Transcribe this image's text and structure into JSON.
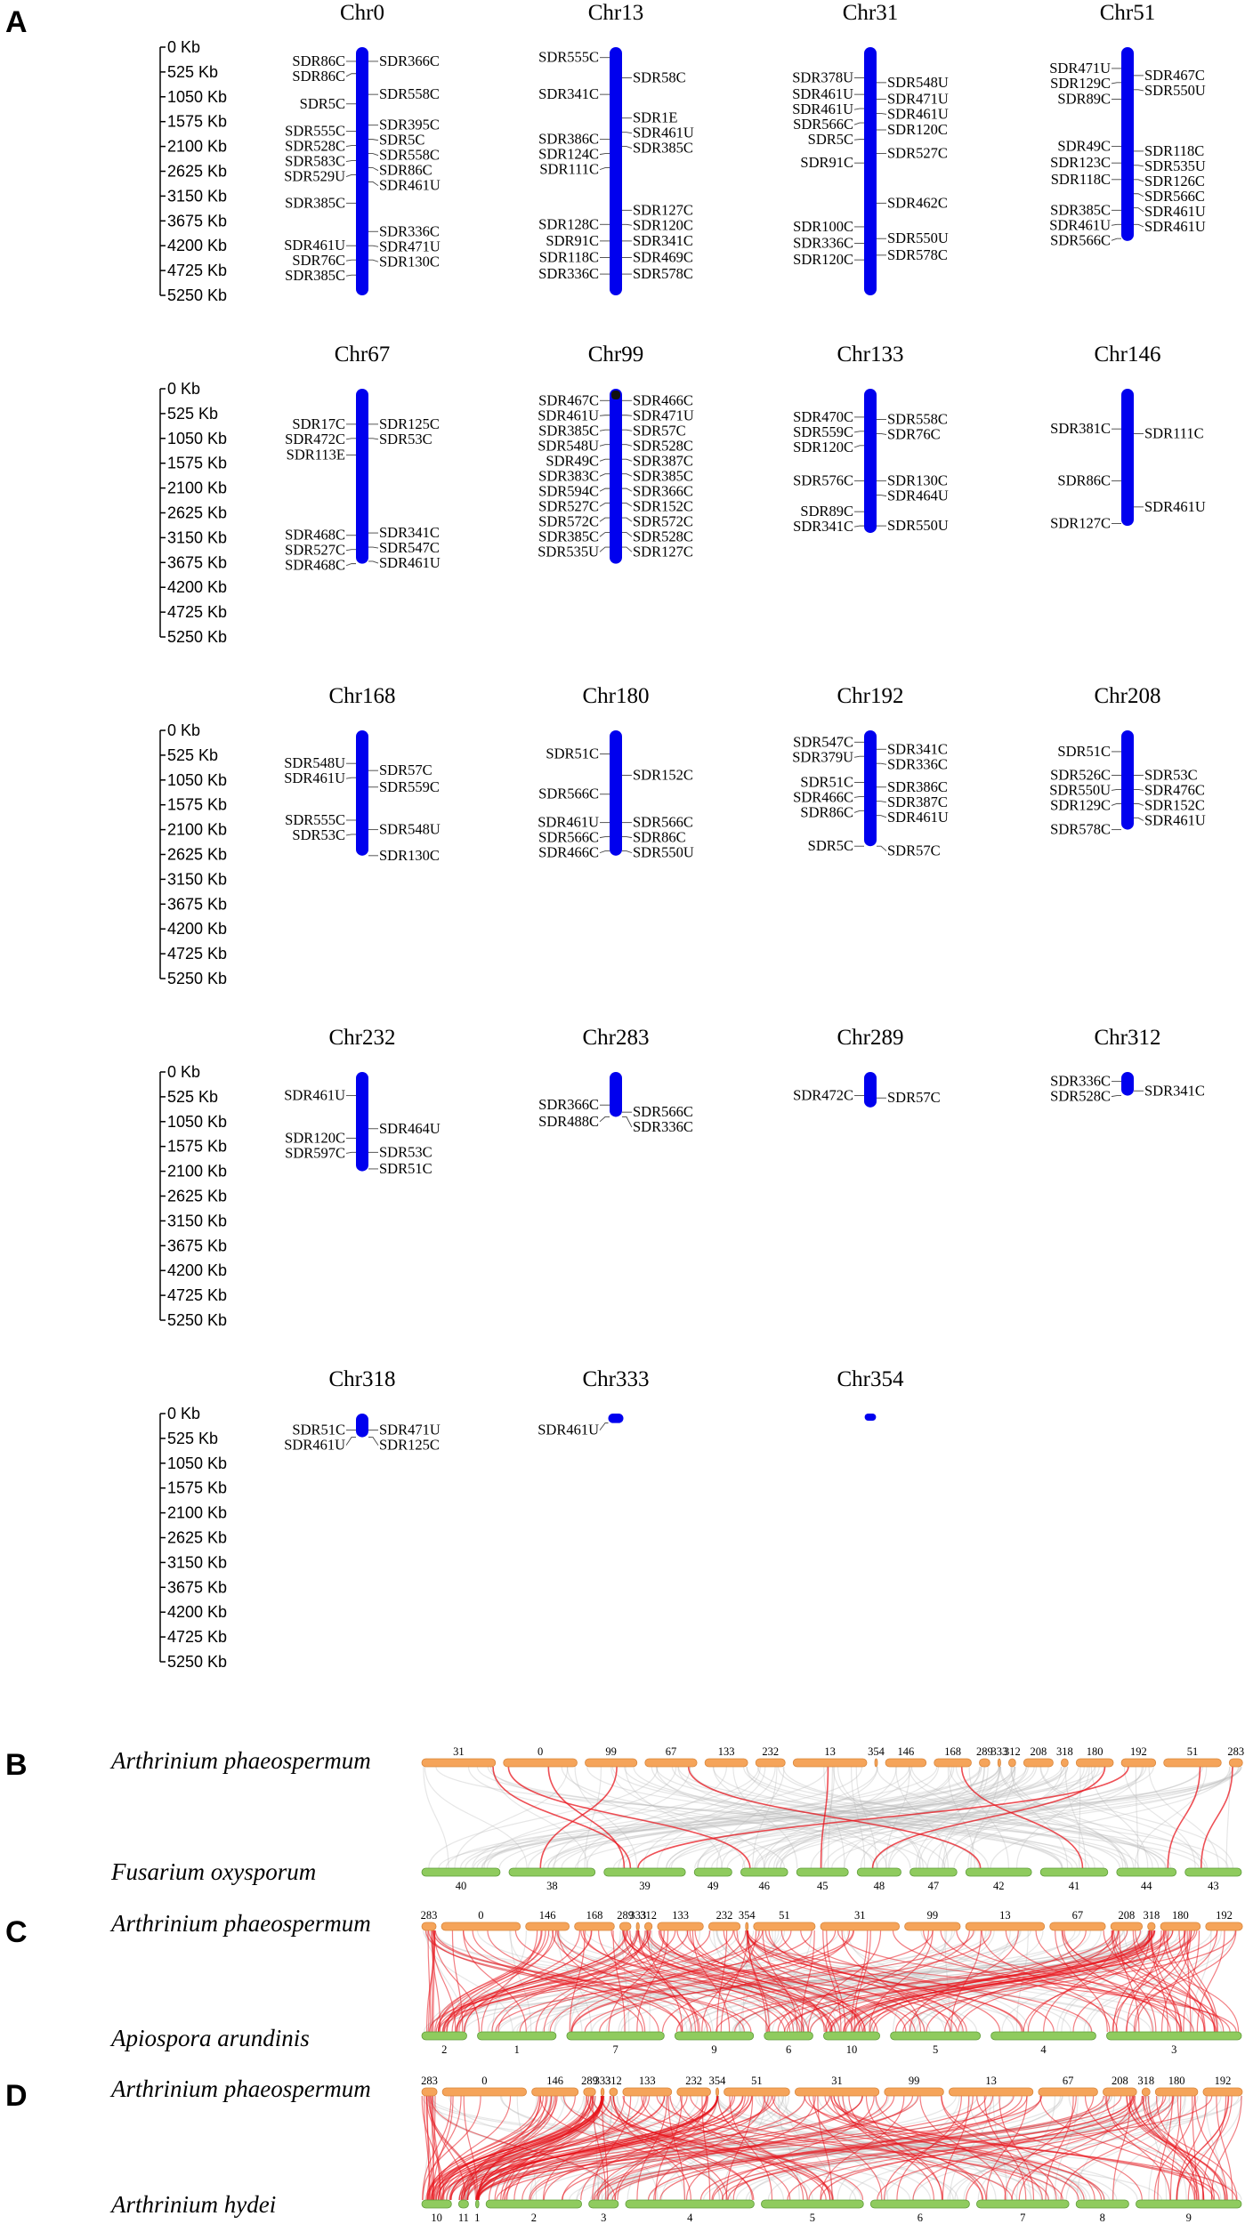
{
  "panel_a": {
    "label": "A",
    "scale_ticks": [
      "0 Kb",
      "525 Kb",
      "1050 Kb",
      "1575 Kb",
      "2100 Kb",
      "2625 Kb",
      "3150 Kb",
      "3675 Kb",
      "4200 Kb",
      "4725 Kb",
      "5250 Kb"
    ],
    "scale_max_kb": 5250,
    "chromosome_color": "#0000ee",
    "chromosomes": [
      {
        "name": "Chr0",
        "length_kb": 5250,
        "left": [
          [
            "SDR86C",
            300
          ],
          [
            "SDR86C",
            560
          ],
          [
            "SDR5C",
            1200
          ],
          [
            "SDR555C",
            1780
          ],
          [
            "SDR528C",
            2080
          ],
          [
            "SDR583C",
            2400
          ],
          [
            "SDR529U",
            2700
          ],
          [
            "SDR385C",
            3300
          ],
          [
            "SDR461U",
            4200
          ],
          [
            "SDR76C",
            4500
          ],
          [
            "SDR385C",
            4820
          ]
        ],
        "right": [
          [
            "SDR366C",
            300
          ],
          [
            "SDR558C",
            1000
          ],
          [
            "SDR395C",
            1650
          ],
          [
            "SDR5C",
            1950
          ],
          [
            "SDR558C",
            2250
          ],
          [
            "SDR86C",
            2550
          ],
          [
            "SDR461U",
            2850
          ],
          [
            "SDR336C",
            3900
          ],
          [
            "SDR471U",
            4200
          ],
          [
            "SDR130C",
            4500
          ]
        ]
      },
      {
        "name": "Chr13",
        "length_kb": 5250,
        "left": [
          [
            "SDR555C",
            220
          ],
          [
            "SDR341C",
            1000
          ],
          [
            "SDR386C",
            1950
          ],
          [
            "SDR124C",
            2250
          ],
          [
            "SDR111C",
            2550
          ],
          [
            "SDR128C",
            3750
          ],
          [
            "SDR91C",
            4100
          ],
          [
            "SDR118C",
            4450
          ],
          [
            "SDR336C",
            4800
          ]
        ],
        "right": [
          [
            "SDR58C",
            650
          ],
          [
            "SDR1E",
            1500
          ],
          [
            "SDR461U",
            1800
          ],
          [
            "SDR385C",
            2100
          ],
          [
            "SDR127C",
            3450
          ],
          [
            "SDR120C",
            3750
          ],
          [
            "SDR341C",
            4100
          ],
          [
            "SDR469C",
            4450
          ],
          [
            "SDR578C",
            4800
          ]
        ],
        "gap_kb": 1500
      },
      {
        "name": "Chr31",
        "length_kb": 5250,
        "left": [
          [
            "SDR378U",
            650
          ],
          [
            "SDR461U",
            1000
          ],
          [
            "SDR461U",
            1300
          ],
          [
            "SDR566C",
            1600
          ],
          [
            "SDR5C",
            1950
          ],
          [
            "SDR91C",
            2450
          ],
          [
            "SDR100C",
            3800
          ],
          [
            "SDR336C",
            4150
          ],
          [
            "SDR120C",
            4500
          ]
        ],
        "right": [
          [
            "SDR548U",
            750
          ],
          [
            "SDR471U",
            1100
          ],
          [
            "SDR461U",
            1400
          ],
          [
            "SDR120C",
            1750
          ],
          [
            "SDR527C",
            2250
          ],
          [
            "SDR462C",
            3300
          ],
          [
            "SDR550U",
            4050
          ],
          [
            "SDR578C",
            4400
          ]
        ]
      },
      {
        "name": "Chr51",
        "length_kb": 4100,
        "left": [
          [
            "SDR471U",
            450
          ],
          [
            "SDR129C",
            750
          ],
          [
            "SDR89C",
            1100
          ],
          [
            "SDR49C",
            2100
          ],
          [
            "SDR123C",
            2450
          ],
          [
            "SDR118C",
            2800
          ],
          [
            "SDR385C",
            3450
          ],
          [
            "SDR461U",
            3750
          ],
          [
            "SDR566C",
            4050
          ]
        ],
        "right": [
          [
            "SDR467C",
            600
          ],
          [
            "SDR550U",
            900
          ],
          [
            "SDR118C",
            2200
          ],
          [
            "SDR535U",
            2500
          ],
          [
            "SDR126C",
            2800
          ],
          [
            "SDR566C",
            3100
          ],
          [
            "SDR461U",
            3400
          ],
          [
            "SDR461U",
            3750
          ]
        ]
      },
      {
        "name": "Chr67",
        "length_kb": 3700,
        "left": [
          [
            "SDR17C",
            750
          ],
          [
            "SDR472C",
            1050
          ],
          [
            "SDR113E",
            1400
          ],
          [
            "SDR468C",
            3100
          ],
          [
            "SDR527C",
            3400
          ],
          [
            "SDR468C",
            3700
          ]
        ],
        "right": [
          [
            "SDR125C",
            750
          ],
          [
            "SDR53C",
            1050
          ],
          [
            "SDR341C",
            3050
          ],
          [
            "SDR547C",
            3350
          ],
          [
            "SDR461U",
            3650
          ]
        ]
      },
      {
        "name": "Chr99",
        "length_kb": 3700,
        "left": [
          [
            "SDR467C",
            250
          ],
          [
            "SDR461U",
            560
          ],
          [
            "SDR385C",
            870
          ],
          [
            "SDR548U",
            1180
          ],
          [
            "SDR49C",
            1490
          ],
          [
            "SDR383C",
            1800
          ],
          [
            "SDR594C",
            2110
          ],
          [
            "SDR527C",
            2420
          ],
          [
            "SDR572C",
            2730
          ],
          [
            "SDR385C",
            3040
          ],
          [
            "SDR535U",
            3350
          ]
        ],
        "right": [
          [
            "SDR466C",
            250
          ],
          [
            "SDR471U",
            560
          ],
          [
            "SDR57C",
            870
          ],
          [
            "SDR528C",
            1180
          ],
          [
            "SDR387C",
            1490
          ],
          [
            "SDR385C",
            1800
          ],
          [
            "SDR366C",
            2110
          ],
          [
            "SDR152C",
            2420
          ],
          [
            "SDR572C",
            2730
          ],
          [
            "SDR528C",
            3040
          ],
          [
            "SDR127C",
            3350
          ]
        ],
        "dark_top": true
      },
      {
        "name": "Chr133",
        "length_kb": 3050,
        "left": [
          [
            "SDR470C",
            600
          ],
          [
            "SDR559C",
            900
          ],
          [
            "SDR120C",
            1200
          ],
          [
            "SDR576C",
            1950
          ],
          [
            "SDR89C",
            2600
          ],
          [
            "SDR341C",
            2900
          ]
        ],
        "right": [
          [
            "SDR558C",
            650
          ],
          [
            "SDR76C",
            950
          ],
          [
            "SDR130C",
            1950
          ],
          [
            "SDR464U",
            2250
          ],
          [
            "SDR550U",
            2900
          ]
        ]
      },
      {
        "name": "Chr146",
        "length_kb": 2900,
        "left": [
          [
            "SDR381C",
            850
          ],
          [
            "SDR86C",
            1950
          ],
          [
            "SDR127C",
            2850
          ]
        ],
        "right": [
          [
            "SDR111C",
            950
          ],
          [
            "SDR461U",
            2500
          ]
        ]
      },
      {
        "name": "Chr168",
        "length_kb": 2650,
        "left": [
          [
            "SDR548U",
            700
          ],
          [
            "SDR461U",
            1000
          ],
          [
            "SDR555C",
            1900
          ],
          [
            "SDR53C",
            2200
          ]
        ],
        "right": [
          [
            "SDR57C",
            850
          ],
          [
            "SDR559C",
            1200
          ],
          [
            "SDR548U",
            2100
          ],
          [
            "SDR130C",
            2650
          ]
        ]
      },
      {
        "name": "Chr180",
        "length_kb": 2650,
        "left": [
          [
            "SDR51C",
            500
          ],
          [
            "SDR566C",
            1350
          ],
          [
            "SDR461U",
            1950
          ],
          [
            "SDR566C",
            2250
          ],
          [
            "SDR466C",
            2550
          ]
        ],
        "right": [
          [
            "SDR152C",
            950
          ],
          [
            "SDR566C",
            1950
          ],
          [
            "SDR86C",
            2250
          ],
          [
            "SDR550U",
            2550
          ]
        ]
      },
      {
        "name": "Chr192",
        "length_kb": 2450,
        "left": [
          [
            "SDR547C",
            250
          ],
          [
            "SDR379U",
            550
          ],
          [
            "SDR51C",
            1100
          ],
          [
            "SDR466C",
            1400
          ],
          [
            "SDR86C",
            1700
          ],
          [
            "SDR5C",
            2450
          ]
        ],
        "right": [
          [
            "SDR341C",
            400
          ],
          [
            "SDR336C",
            700
          ],
          [
            "SDR386C",
            1200
          ],
          [
            "SDR387C",
            1500
          ],
          [
            "SDR461U",
            1800
          ],
          [
            "SDR57C",
            2550
          ]
        ]
      },
      {
        "name": "Chr208",
        "length_kb": 2100,
        "left": [
          [
            "SDR51C",
            450
          ],
          [
            "SDR526C",
            950
          ],
          [
            "SDR550U",
            1250
          ],
          [
            "SDR129C",
            1550
          ],
          [
            "SDR578C",
            2100
          ]
        ],
        "right": [
          [
            "SDR53C",
            950
          ],
          [
            "SDR476C",
            1250
          ],
          [
            "SDR152C",
            1550
          ],
          [
            "SDR461U",
            1850
          ]
        ]
      },
      {
        "name": "Chr232",
        "length_kb": 2100,
        "left": [
          [
            "SDR461U",
            500
          ],
          [
            "SDR120C",
            1400
          ],
          [
            "SDR597C",
            1700
          ]
        ],
        "right": [
          [
            "SDR464U",
            1200
          ],
          [
            "SDR53C",
            1700
          ],
          [
            "SDR51C",
            2050
          ]
        ]
      },
      {
        "name": "Chr283",
        "length_kb": 950,
        "left": [
          [
            "SDR366C",
            700
          ],
          [
            "SDR488C",
            1050
          ]
        ],
        "right": [
          [
            "SDR566C",
            850
          ],
          [
            "SDR336C",
            1150
          ]
        ]
      },
      {
        "name": "Chr289",
        "length_kb": 750,
        "left": [
          [
            "SDR472C",
            500
          ]
        ],
        "right": [
          [
            "SDR57C",
            550
          ]
        ]
      },
      {
        "name": "Chr312",
        "length_kb": 500,
        "left": [
          [
            "SDR336C",
            200
          ],
          [
            "SDR528C",
            500
          ]
        ],
        "right": [
          [
            "SDR341C",
            400
          ]
        ]
      },
      {
        "name": "Chr318",
        "length_kb": 500,
        "left": [
          [
            "SDR51C",
            350
          ],
          [
            "SDR461U",
            650
          ]
        ],
        "right": [
          [
            "SDR471U",
            350
          ],
          [
            "SDR125C",
            650
          ]
        ]
      },
      {
        "name": "Chr333",
        "length_kb": 200,
        "left": [
          [
            "SDR461U",
            350
          ]
        ],
        "right": []
      },
      {
        "name": "Chr354",
        "length_kb": 110,
        "left": [],
        "right": []
      }
    ]
  },
  "panel_b": {
    "label": "B",
    "top_species": "Arthrinium phaeospermum",
    "bottom_species": "Fusarium oxysporum",
    "top_color": "#f5a45a",
    "bottom_color": "#7fc454",
    "top_chromosomes": [
      "31",
      "0",
      "99",
      "67",
      "133",
      "232",
      "13",
      "354",
      "146",
      "168",
      "289",
      "333",
      "312",
      "208",
      "318",
      "180",
      "192",
      "51",
      "283"
    ],
    "top_sizes": [
      5250,
      5250,
      3700,
      3700,
      3050,
      2100,
      5250,
      110,
      2900,
      2650,
      750,
      200,
      500,
      2100,
      500,
      2650,
      2450,
      4100,
      950
    ],
    "bottom_chromosomes": [
      "40",
      "38",
      "39",
      "49",
      "46",
      "45",
      "48",
      "47",
      "42",
      "41",
      "44",
      "43"
    ],
    "bottom_sizes": [
      5000,
      5500,
      5200,
      2400,
      3000,
      3300,
      2800,
      3000,
      4200,
      4300,
      3800,
      3600
    ],
    "red_links": [
      [
        0,
        2
      ],
      [
        1,
        2
      ],
      [
        1,
        4
      ],
      [
        2,
        1
      ],
      [
        6,
        5
      ],
      [
        17,
        10
      ],
      [
        18,
        11
      ],
      [
        15,
        6
      ],
      [
        9,
        9
      ],
      [
        16,
        2
      ],
      [
        3,
        8
      ]
    ],
    "red_link_count": 11,
    "grey_link_count": 140
  },
  "panel_c": {
    "label": "C",
    "top_species": "Arthrinium phaeospermum",
    "bottom_species": "Apiospora arundinis",
    "top_chromosomes": [
      "283",
      "0",
      "146",
      "168",
      "289",
      "333",
      "312",
      "133",
      "232",
      "354",
      "51",
      "31",
      "99",
      "13",
      "67",
      "208",
      "318",
      "180",
      "192"
    ],
    "top_sizes": [
      950,
      5250,
      2900,
      2650,
      750,
      200,
      500,
      3050,
      2100,
      110,
      4100,
      5250,
      3700,
      5250,
      3700,
      2100,
      500,
      2650,
      2450
    ],
    "bottom_chromosomes": [
      "2",
      "1",
      "7",
      "9",
      "6",
      "10",
      "5",
      "4",
      "3"
    ],
    "bottom_sizes": [
      2400,
      4200,
      5200,
      4200,
      2600,
      3000,
      4800,
      5600,
      7200
    ],
    "red_link_count": 180,
    "grey_link_count": 110
  },
  "panel_d": {
    "label": "D",
    "top_species": "Arthrinium phaeospermum",
    "bottom_species": "Arthrinium hydei",
    "top_chromosomes": [
      "283",
      "0",
      "146",
      "289",
      "333",
      "312",
      "133",
      "232",
      "354",
      "51",
      "31",
      "99",
      "13",
      "67",
      "208",
      "318",
      "180",
      "192"
    ],
    "top_sizes": [
      950,
      5250,
      2900,
      750,
      200,
      500,
      3050,
      2100,
      110,
      4100,
      5250,
      3700,
      5250,
      3700,
      2100,
      500,
      2650,
      2450
    ],
    "bottom_chromosomes": [
      "10",
      "11",
      "1",
      "2",
      "3",
      "4",
      "5",
      "6",
      "7",
      "8",
      "9"
    ],
    "bottom_sizes": [
      1800,
      600,
      200,
      5800,
      1800,
      7800,
      6200,
      6000,
      5600,
      3200,
      6400
    ],
    "red_link_count": 200,
    "grey_link_count": 120
  }
}
